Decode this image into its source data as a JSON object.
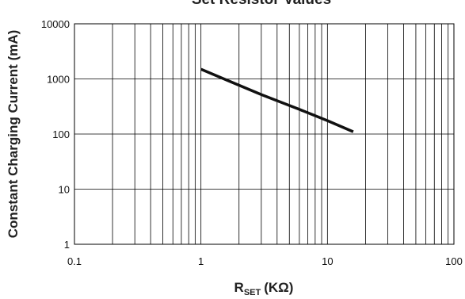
{
  "chart_data": {
    "type": "line",
    "title": "Set Resistor Values",
    "xlabel_main": "R",
    "xlabel_sub": "SET",
    "xlabel_unit": "(KΩ)",
    "ylabel": "Constant Charging Current (mA)",
    "x_scale": "log",
    "y_scale": "log",
    "xlim": [
      0.1,
      100
    ],
    "ylim": [
      1,
      10000
    ],
    "x_ticks": [
      "0.1",
      "1",
      "10",
      "100"
    ],
    "y_ticks": [
      "1",
      "10",
      "100",
      "1000",
      "10000"
    ],
    "grid": true,
    "legend": "none",
    "series": [
      {
        "x": [
          1,
          1.6,
          3,
          6,
          10,
          16
        ],
        "y": [
          1500,
          950,
          520,
          280,
          175,
          110
        ],
        "color": "#111111"
      }
    ]
  }
}
